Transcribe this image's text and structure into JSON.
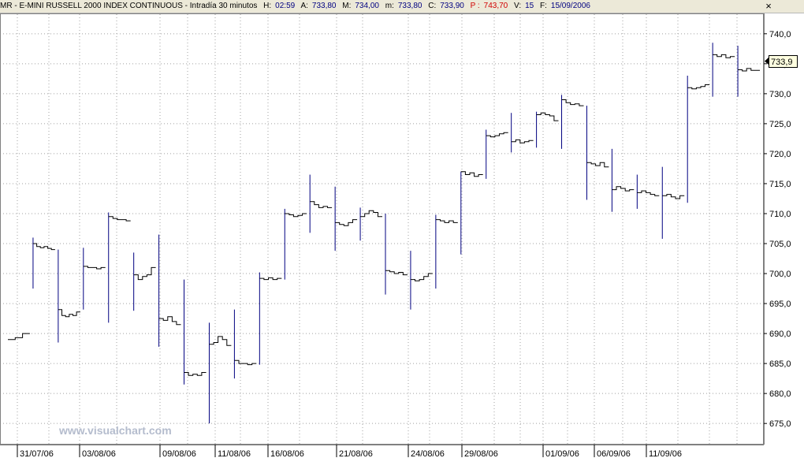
{
  "header": {
    "symbol": "MR - E-MINI RUSSELL 2000 INDEX CONTINUOUS - Intradía 30 minutos",
    "h_label": "H:",
    "h_value": "02:59",
    "a_label": "A:",
    "a_value": "733,80",
    "m_label": "M:",
    "m_value": "734,00",
    "mn_label": "m:",
    "mn_value": "733,80",
    "c_label": "C:",
    "c_value": "733,90",
    "p_label": "P :",
    "p_value": "743,70",
    "v_label": "V:",
    "v_value": "15",
    "f_label": "F:",
    "f_value": "15/09/2006"
  },
  "watermark": "www.visualchart.com",
  "last_price_label": "733,9",
  "colors": {
    "price_line": "#000000",
    "gap_line": "#000080",
    "grid": "#a0a0a0",
    "price_tag_bg": "#ffffe0"
  },
  "chart_data": {
    "type": "line",
    "title": "MR - E-MINI RUSSELL 2000 INDEX CONTINUOUS - Intradía 30 minutos",
    "ylim": [
      672,
      743
    ],
    "y_ticks": [
      "740,0",
      "735,0",
      "730,0",
      "725,0",
      "720,0",
      "715,0",
      "710,0",
      "705,0",
      "700,0",
      "695,0",
      "690,0",
      "685,0",
      "680,0",
      "675,0"
    ],
    "y_tick_values": [
      740,
      735,
      730,
      725,
      720,
      715,
      710,
      705,
      700,
      695,
      690,
      685,
      680,
      675
    ],
    "x_labels": [
      "31/07/06",
      "03/08/06",
      "09/08/06",
      "11/08/06",
      "16/08/06",
      "21/08/06",
      "24/08/06",
      "29/08/06",
      "01/09/06",
      "06/09/06",
      "11/09/06"
    ],
    "grid": true,
    "sessions": [
      {
        "gap_high": null,
        "gap_low": null,
        "levels": [
          689.0,
          689.3,
          690.0
        ]
      },
      {
        "gap_high": 706.0,
        "gap_low": 697.5,
        "levels": [
          705.0,
          704.5,
          704.3,
          704.5,
          704.2,
          704.0
        ]
      },
      {
        "gap_high": 704.0,
        "gap_low": 688.5,
        "levels": [
          694.0,
          693.0,
          692.8,
          693.2,
          693.0,
          693.6
        ]
      },
      {
        "gap_high": 704.3,
        "gap_low": 694.0,
        "levels": [
          701.2,
          701.0,
          701.0,
          700.8,
          701.0
        ]
      },
      {
        "gap_high": 710.2,
        "gap_low": 691.8,
        "levels": [
          709.5,
          709.2,
          709.0,
          709.0,
          708.8
        ]
      },
      {
        "gap_high": 703.5,
        "gap_low": 693.8,
        "levels": [
          699.8,
          699.0,
          699.5,
          699.8,
          701.0
        ]
      },
      {
        "gap_high": 706.5,
        "gap_low": 687.8,
        "levels": [
          692.5,
          692.2,
          692.8,
          692.0,
          691.5
        ]
      },
      {
        "gap_high": 699.0,
        "gap_low": 681.5,
        "levels": [
          683.5,
          683.0,
          683.2,
          683.0,
          683.5
        ]
      },
      {
        "gap_high": 691.8,
        "gap_low": 675.0,
        "levels": [
          688.2,
          688.5,
          689.5,
          689.0,
          688.0
        ]
      },
      {
        "gap_high": 694.0,
        "gap_low": 682.5,
        "levels": [
          685.5,
          685.0,
          685.0,
          684.8,
          685.0
        ]
      },
      {
        "gap_high": 700.2,
        "gap_low": 684.8,
        "levels": [
          699.2,
          699.0,
          699.3,
          699.0,
          699.2
        ]
      },
      {
        "gap_high": 710.8,
        "gap_low": 699.0,
        "levels": [
          710.0,
          709.8,
          709.5,
          709.7,
          710.0
        ]
      },
      {
        "gap_high": 716.5,
        "gap_low": 706.8,
        "levels": [
          712.0,
          711.5,
          711.0,
          711.2,
          711.0
        ]
      },
      {
        "gap_high": 714.5,
        "gap_low": 703.8,
        "levels": [
          708.5,
          708.2,
          708.0,
          708.5,
          709.0
        ]
      },
      {
        "gap_high": 711.0,
        "gap_low": 705.5,
        "levels": [
          709.5,
          710.0,
          710.5,
          710.2,
          709.5
        ]
      },
      {
        "gap_high": 710.0,
        "gap_low": 696.5,
        "levels": [
          700.5,
          700.3,
          700.0,
          700.2,
          699.8
        ]
      },
      {
        "gap_high": 703.8,
        "gap_low": 694.0,
        "levels": [
          699.0,
          698.8,
          699.0,
          699.5,
          700.0
        ]
      },
      {
        "gap_high": 709.8,
        "gap_low": 697.5,
        "levels": [
          709.0,
          708.8,
          708.5,
          708.8,
          708.5
        ]
      },
      {
        "gap_high": 717.0,
        "gap_low": 703.2,
        "levels": [
          717.0,
          716.5,
          716.8,
          716.2,
          716.5
        ]
      },
      {
        "gap_high": 724.0,
        "gap_low": 715.8,
        "levels": [
          723.0,
          722.8,
          723.0,
          723.3,
          723.5
        ]
      },
      {
        "gap_high": 726.8,
        "gap_low": 720.2,
        "levels": [
          722.0,
          722.3,
          721.8,
          722.0,
          722.2
        ]
      },
      {
        "gap_high": 727.0,
        "gap_low": 721.0,
        "levels": [
          726.5,
          726.8,
          726.5,
          726.3,
          725.5
        ]
      },
      {
        "gap_high": 729.8,
        "gap_low": 720.8,
        "levels": [
          729.0,
          728.5,
          728.2,
          728.3,
          728.0
        ]
      },
      {
        "gap_high": 728.0,
        "gap_low": 712.3,
        "levels": [
          718.5,
          718.3,
          718.0,
          718.5,
          717.8
        ]
      },
      {
        "gap_high": 720.8,
        "gap_low": 710.3,
        "levels": [
          714.0,
          714.5,
          714.2,
          713.8,
          714.0
        ]
      },
      {
        "gap_high": 716.5,
        "gap_low": 710.8,
        "levels": [
          713.5,
          713.8,
          713.5,
          713.2,
          713.0
        ]
      },
      {
        "gap_high": 717.8,
        "gap_low": 705.8,
        "levels": [
          713.0,
          713.2,
          712.8,
          712.5,
          713.0
        ]
      },
      {
        "gap_high": 733.0,
        "gap_low": 711.8,
        "levels": [
          731.0,
          730.8,
          731.0,
          731.2,
          731.5
        ]
      },
      {
        "gap_high": 738.5,
        "gap_low": 729.5,
        "levels": [
          736.5,
          736.2,
          736.5,
          736.0,
          736.2
        ]
      },
      {
        "gap_high": 738.0,
        "gap_low": 729.5,
        "levels": [
          734.0,
          733.8,
          734.2,
          733.9,
          733.9
        ]
      }
    ]
  }
}
